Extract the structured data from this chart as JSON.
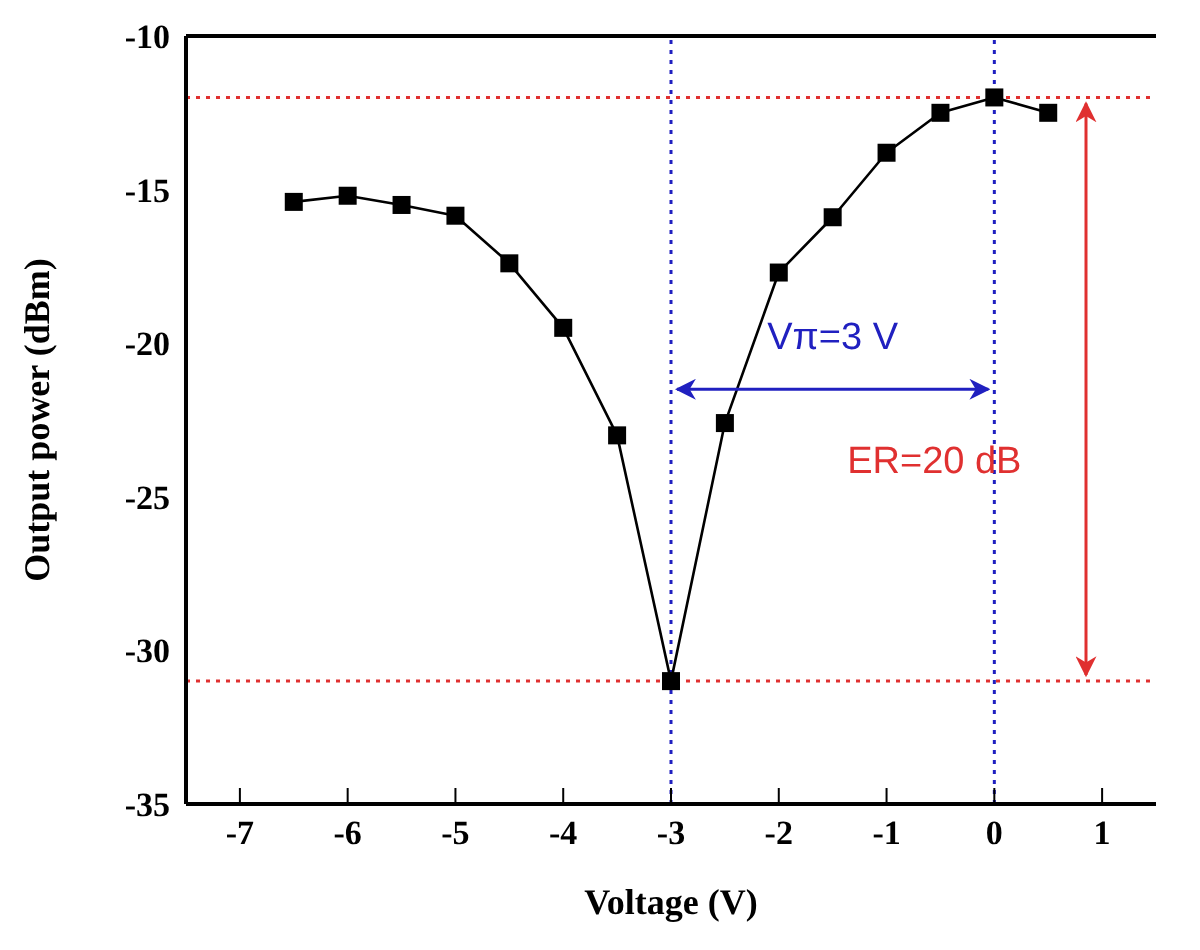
{
  "chart_data": {
    "type": "line",
    "xlabel": "Voltage (V)",
    "ylabel": "Output power (dBm)",
    "x": [
      -6.5,
      -6,
      -5.5,
      -5,
      -4.5,
      -4,
      -3.5,
      -3,
      -2.5,
      -2,
      -1.5,
      -1,
      -0.5,
      0,
      0.5
    ],
    "series": [
      {
        "color": "#000000",
        "values": [
          -15.4,
          -15.2,
          -15.5,
          -15.85,
          -17.4,
          -19.5,
          -23.0,
          -31.0,
          -22.6,
          -17.7,
          -15.9,
          -13.8,
          -12.5,
          -12.0,
          -12.5
        ]
      }
    ],
    "xlim": [
      -7.5,
      1.5
    ],
    "xticks": [
      -7,
      -6,
      -5,
      -4,
      -3,
      -2,
      -1,
      0,
      1
    ],
    "ylim": [
      -35,
      -10
    ],
    "yticks": [
      -35,
      -30,
      -25,
      -20,
      -15,
      -10
    ],
    "marker": "square",
    "line_style": "solid",
    "ref_lines": [
      {
        "axis": "x",
        "value": -3,
        "color": "#2020c0",
        "line_style": "dotted"
      },
      {
        "axis": "x",
        "value": 0,
        "color": "#2020c0",
        "line_style": "dotted"
      },
      {
        "axis": "y",
        "value": -12,
        "color": "#e03030",
        "line_style": "dotted"
      },
      {
        "axis": "y",
        "value": -31,
        "color": "#e03030",
        "line_style": "dotted"
      }
    ],
    "annotations": [
      "Vπ=3 V",
      "ER=20 dB"
    ]
  }
}
